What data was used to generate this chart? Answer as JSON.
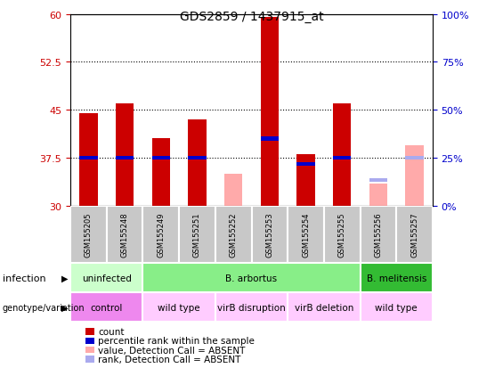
{
  "title": "GDS2859 / 1437915_at",
  "samples": [
    "GSM155205",
    "GSM155248",
    "GSM155249",
    "GSM155251",
    "GSM155252",
    "GSM155253",
    "GSM155254",
    "GSM155255",
    "GSM155256",
    "GSM155257"
  ],
  "red_bars": [
    44.5,
    46.0,
    40.5,
    43.5,
    null,
    59.5,
    38.0,
    46.0,
    null,
    null
  ],
  "blue_bars": [
    37.5,
    37.5,
    37.5,
    37.5,
    null,
    40.5,
    36.5,
    37.5,
    null,
    null
  ],
  "pink_bars": [
    null,
    null,
    null,
    null,
    35.0,
    null,
    null,
    null,
    33.5,
    39.5
  ],
  "lightblue_bars": [
    null,
    null,
    null,
    null,
    null,
    null,
    null,
    null,
    34.0,
    37.5
  ],
  "ymin": 30,
  "ymax": 60,
  "yticks_left": [
    30,
    37.5,
    45,
    52.5,
    60
  ],
  "yticks_right": [
    0,
    25,
    50,
    75,
    100
  ],
  "infection_groups": [
    {
      "label": "uninfected",
      "start": 0,
      "end": 2,
      "color": "#ccffcc"
    },
    {
      "label": "B. arbortus",
      "start": 2,
      "end": 8,
      "color": "#88ee88"
    },
    {
      "label": "B. melitensis",
      "start": 8,
      "end": 10,
      "color": "#33bb33"
    }
  ],
  "genotype_groups": [
    {
      "label": "control",
      "start": 0,
      "end": 2,
      "color": "#ee88ee"
    },
    {
      "label": "wild type",
      "start": 2,
      "end": 4,
      "color": "#ffccff"
    },
    {
      "label": "virB disruption",
      "start": 4,
      "end": 6,
      "color": "#ffccff"
    },
    {
      "label": "virB deletion",
      "start": 6,
      "end": 8,
      "color": "#ffccff"
    },
    {
      "label": "wild type",
      "start": 8,
      "end": 10,
      "color": "#ffccff"
    }
  ],
  "red_color": "#cc0000",
  "blue_color": "#0000cc",
  "pink_color": "#ffaaaa",
  "lightblue_color": "#aaaaee",
  "bar_width": 0.5,
  "left_axis_color": "#cc0000",
  "right_axis_color": "#0000cc",
  "legend_items": [
    {
      "color": "#cc0000",
      "label": "count"
    },
    {
      "color": "#0000cc",
      "label": "percentile rank within the sample"
    },
    {
      "color": "#ffaaaa",
      "label": "value, Detection Call = ABSENT"
    },
    {
      "color": "#aaaaee",
      "label": "rank, Detection Call = ABSENT"
    }
  ]
}
